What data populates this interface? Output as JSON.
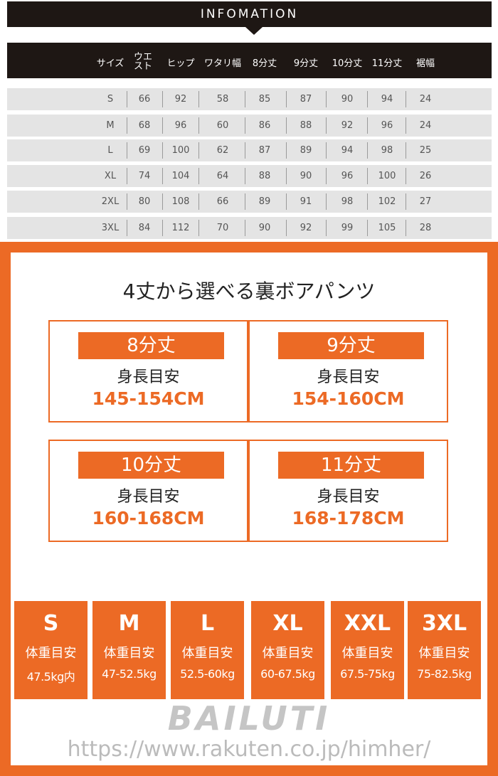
{
  "header": {
    "title": "INFOMATION"
  },
  "table": {
    "columns": [
      "サイズ",
      "ウエスト",
      "ヒップ",
      "ワタリ幅",
      "8分丈",
      "9分丈",
      "10分丈",
      "11分丈",
      "裾幅"
    ],
    "rows": [
      [
        "S",
        "66",
        "92",
        "58",
        "85",
        "87",
        "90",
        "94",
        "24"
      ],
      [
        "M",
        "68",
        "96",
        "60",
        "86",
        "88",
        "92",
        "96",
        "24"
      ],
      [
        "L",
        "69",
        "100",
        "62",
        "87",
        "89",
        "94",
        "98",
        "25"
      ],
      [
        "XL",
        "74",
        "104",
        "64",
        "88",
        "90",
        "96",
        "100",
        "26"
      ],
      [
        "2XL",
        "80",
        "108",
        "66",
        "89",
        "91",
        "98",
        "102",
        "27"
      ],
      [
        "3XL",
        "84",
        "112",
        "70",
        "90",
        "92",
        "99",
        "105",
        "28"
      ]
    ]
  },
  "lengths": {
    "title": "4丈から選べる裏ボアパンツ",
    "items": [
      {
        "label": "8分丈",
        "sub": "身長目安",
        "range": "145-154CM"
      },
      {
        "label": "9分丈",
        "sub": "身長目安",
        "range": "154-160CM"
      },
      {
        "label": "10分丈",
        "sub": "身長目安",
        "range": "160-168CM"
      },
      {
        "label": "11分丈",
        "sub": "身長目安",
        "range": "168-178CM"
      }
    ]
  },
  "weights": [
    {
      "size": "S",
      "label": "体重目安",
      "range": "47.5kg内"
    },
    {
      "size": "M",
      "label": "体重目安",
      "range": "47-52.5kg"
    },
    {
      "size": "L",
      "label": "体重目安",
      "range": "52.5-60kg"
    },
    {
      "size": "XL",
      "label": "体重目安",
      "range": "60-67.5kg"
    },
    {
      "size": "XXL",
      "label": "体重目安",
      "range": "67.5-75kg"
    },
    {
      "size": "3XL",
      "label": "体重目安",
      "range": "75-82.5kg"
    }
  ],
  "watermark": "BAILUTI",
  "url": "https://www.rakuten.co.jp/himher/",
  "colors": {
    "accent": "#ec6a25",
    "dark": "#1e1714",
    "row": "#e4e4e4"
  }
}
